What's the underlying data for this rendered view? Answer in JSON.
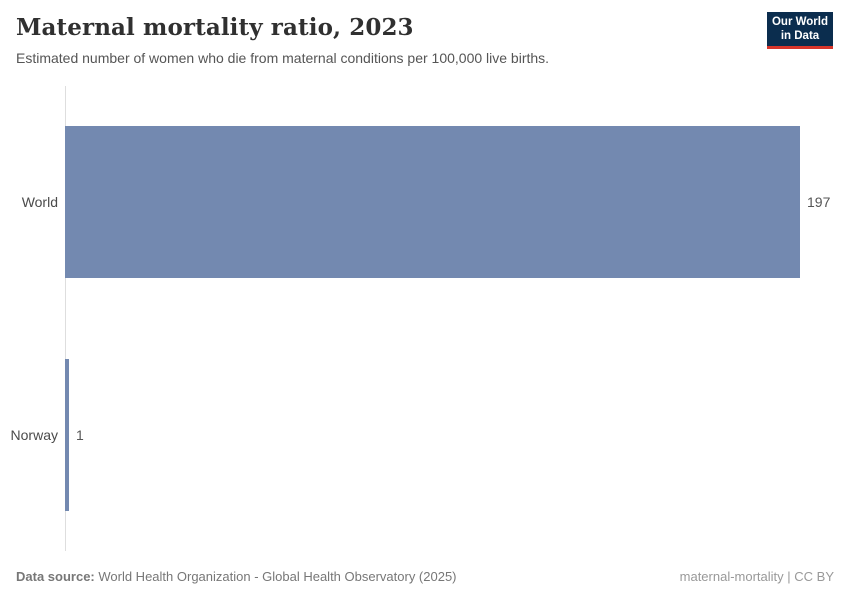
{
  "header": {
    "title": "Maternal mortality ratio, 2023",
    "subtitle": "Estimated number of women who die from maternal conditions per 100,000 live births.",
    "logo": {
      "line1": "Our World",
      "line2": "in Data",
      "bg_color": "#0b2d4e",
      "accent_color": "#d8352a"
    }
  },
  "chart_data": {
    "type": "bar",
    "orientation": "horizontal",
    "title": "Maternal mortality ratio, 2023",
    "xlabel": "",
    "ylabel": "",
    "categories": [
      "World",
      "Norway"
    ],
    "values": [
      197,
      1
    ],
    "value_labels": [
      "197",
      "1"
    ],
    "xlim": [
      0,
      197
    ],
    "grid": false,
    "legend": "none",
    "bar_color": "#7389b0",
    "axis_color": "#dedede"
  },
  "footer": {
    "datasource_label": "Data source:",
    "datasource_text": " World Health Organization - Global Health Observatory (2025)",
    "note_right": "maternal-mortality | CC BY"
  }
}
